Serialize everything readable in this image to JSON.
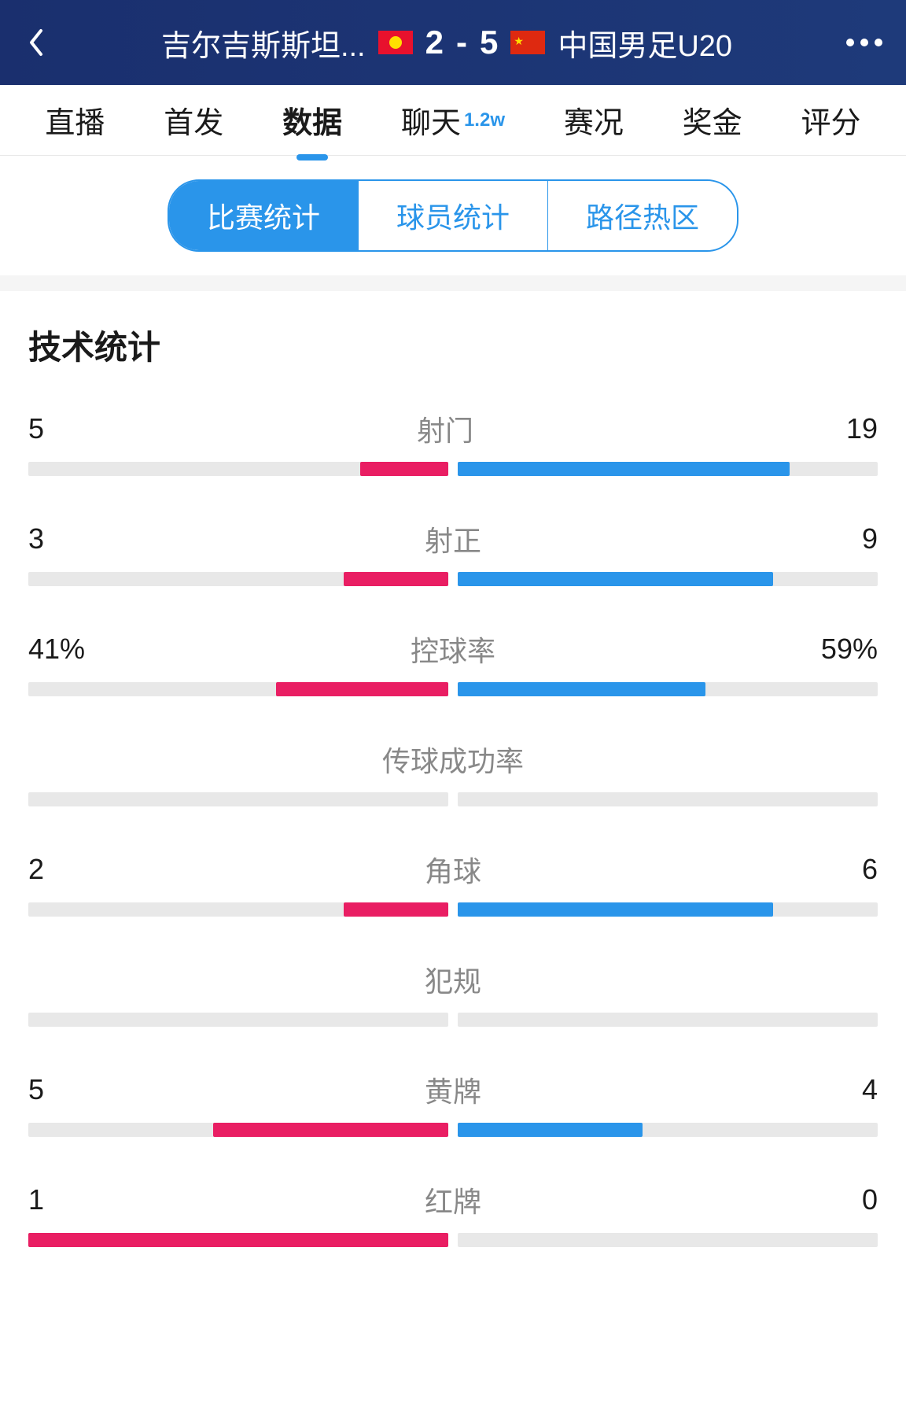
{
  "header": {
    "team_left": "吉尔吉斯斯坦...",
    "team_right": "中国男足U20",
    "score_left": "2",
    "score_right": "5",
    "score_sep": "-"
  },
  "main_tabs": [
    {
      "label": "直播",
      "active": false,
      "badge": null
    },
    {
      "label": "首发",
      "active": false,
      "badge": null
    },
    {
      "label": "数据",
      "active": true,
      "badge": null
    },
    {
      "label": "聊天",
      "active": false,
      "badge": "1.2w"
    },
    {
      "label": "赛况",
      "active": false,
      "badge": null
    },
    {
      "label": "奖金",
      "active": false,
      "badge": null
    },
    {
      "label": "评分",
      "active": false,
      "badge": null
    }
  ],
  "sub_tabs": [
    {
      "label": "比赛统计",
      "active": true
    },
    {
      "label": "球员统计",
      "active": false
    },
    {
      "label": "路径热区",
      "active": false
    }
  ],
  "stats": {
    "title": "技术统计",
    "rows": [
      {
        "name": "射门",
        "left": "5",
        "right": "19",
        "left_pct": 21,
        "right_pct": 79
      },
      {
        "name": "射正",
        "left": "3",
        "right": "9",
        "left_pct": 25,
        "right_pct": 75
      },
      {
        "name": "控球率",
        "left": "41%",
        "right": "59%",
        "left_pct": 41,
        "right_pct": 59
      },
      {
        "name": "传球成功率",
        "left": "",
        "right": "",
        "left_pct": 0,
        "right_pct": 0
      },
      {
        "name": "角球",
        "left": "2",
        "right": "6",
        "left_pct": 25,
        "right_pct": 75
      },
      {
        "name": "犯规",
        "left": "",
        "right": "",
        "left_pct": 0,
        "right_pct": 0
      },
      {
        "name": "黄牌",
        "left": "5",
        "right": "4",
        "left_pct": 56,
        "right_pct": 44
      },
      {
        "name": "红牌",
        "left": "1",
        "right": "0",
        "left_pct": 100,
        "right_pct": 0
      }
    ]
  },
  "colors": {
    "header_bg": "#1a2f6e",
    "primary": "#2a95ea",
    "left_bar": "#e91e63",
    "right_bar": "#2a95ea",
    "bar_bg": "#e8e8e8",
    "label_gray": "#888888",
    "text": "#1a1a1a"
  }
}
